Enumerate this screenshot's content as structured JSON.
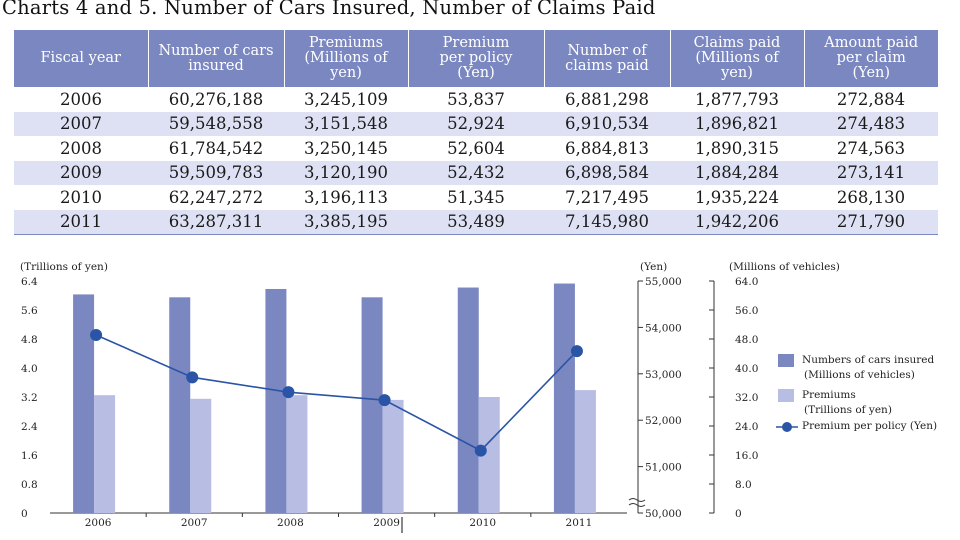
{
  "title": "Charts 4 and 5. Number of Cars Insured, Number of Claims Paid",
  "table": {
    "headers": [
      [
        "Fiscal year"
      ],
      [
        "Number of cars",
        "insured"
      ],
      [
        "Premiums",
        "(Millions of",
        "yen)"
      ],
      [
        "Premium",
        "per policy",
        "(Yen)"
      ],
      [
        "Number of",
        "claims paid"
      ],
      [
        "Claims paid",
        "(Millions of",
        "yen)"
      ],
      [
        "Amount paid",
        "per claim",
        "(Yen)"
      ]
    ],
    "rows": [
      [
        "2006",
        "60,276,188",
        "3,245,109",
        "53,837",
        "6,881,298",
        "1,877,793",
        "272,884"
      ],
      [
        "2007",
        "59,548,558",
        "3,151,548",
        "52,924",
        "6,910,534",
        "1,896,821",
        "274,483"
      ],
      [
        "2008",
        "61,784,542",
        "3,250,145",
        "52,604",
        "6,884,813",
        "1,890,315",
        "274,563"
      ],
      [
        "2009",
        "59,509,783",
        "3,120,190",
        "52,432",
        "6,898,584",
        "1,884,284",
        "273,141"
      ],
      [
        "2010",
        "62,247,272",
        "3,196,113",
        "51,345",
        "7,217,495",
        "1,935,224",
        "268,130"
      ],
      [
        "2011",
        "63,287,311",
        "3,385,195",
        "53,489",
        "7,145,980",
        "1,942,206",
        "271,790"
      ]
    ]
  },
  "chart_data": {
    "type": "bar",
    "categories": [
      "2006",
      "2007",
      "2008",
      "2009",
      "2010",
      "2011"
    ],
    "series": [
      {
        "name": "Numbers of cars insured (Millions of vehicles)",
        "type": "bar",
        "axis": "right2",
        "values": [
          60.3,
          59.5,
          61.8,
          59.5,
          62.2,
          63.3
        ],
        "color": "#7b87c0"
      },
      {
        "name": "Premiums (Trillions of yen)",
        "type": "bar",
        "axis": "left",
        "values": [
          3.25,
          3.15,
          3.25,
          3.12,
          3.2,
          3.39
        ],
        "color": "#b7bde3"
      },
      {
        "name": "Premium per policy (Yen)",
        "type": "line",
        "axis": "right1",
        "values": [
          53837,
          52924,
          52604,
          52432,
          51345,
          53489
        ],
        "color": "#2a54a6"
      }
    ],
    "axes": {
      "left": {
        "label": "(Trillions of yen)",
        "min": 0,
        "max": 6.4,
        "ticks": [
          "0",
          "0.8",
          "1.6",
          "2.4",
          "3.2",
          "4.0",
          "4.8",
          "5.6",
          "6.4"
        ]
      },
      "right1": {
        "label": "(Yen)",
        "min": 50000,
        "max": 55000,
        "ticks": [
          "50,000",
          "51,000",
          "52,000",
          "53,000",
          "54,000",
          "55,000"
        ]
      },
      "right2": {
        "label": "(Millions of vehicles)",
        "min": 0,
        "max": 64,
        "ticks": [
          "0",
          "8.0",
          "16.0",
          "24.0",
          "32.0",
          "40.0",
          "48.0",
          "56.0",
          "64.0"
        ]
      }
    },
    "legend": [
      {
        "lines": [
          "Numbers of cars insured",
          "(Millions of vehicles)"
        ],
        "marker": "bar",
        "color": "#7b87c0"
      },
      {
        "lines": [
          "Premiums",
          "(Trillions of yen)"
        ],
        "marker": "bar",
        "color": "#b7bde3"
      },
      {
        "lines": [
          "Premium per policy  (Yen)"
        ],
        "marker": "line",
        "color": "#2a54a6"
      }
    ],
    "legend_position": "right",
    "grid": false
  }
}
